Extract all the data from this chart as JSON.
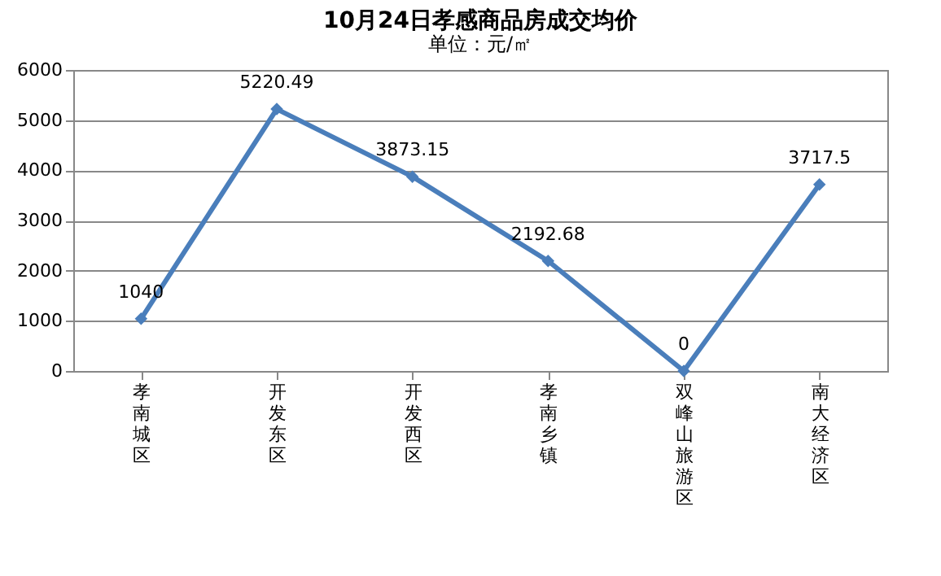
{
  "chart_data": {
    "type": "line",
    "title": "10月24日孝感商品房成交均价",
    "annotations": [
      "单位：元/㎡"
    ],
    "categories": [
      "孝南城区",
      "开发东区",
      "开发西区",
      "孝南乡镇",
      "双峰山旅游区",
      "南大经济区"
    ],
    "series": [
      {
        "color": "#4a7ebb",
        "values": [
          1040,
          5220.49,
          3873.15,
          2192.68,
          0,
          3717.5
        ]
      }
    ],
    "ylim": [
      0,
      6000
    ],
    "yticks": [
      0,
      1000,
      2000,
      3000,
      4000,
      5000,
      6000
    ],
    "grid": "y",
    "marker": "diamond",
    "data_labels": true,
    "legend": false
  }
}
